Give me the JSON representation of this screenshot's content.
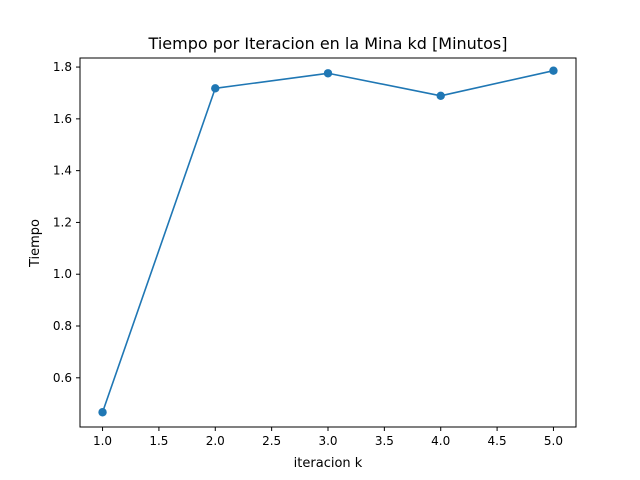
{
  "chart_data": {
    "type": "line",
    "title": "Tiempo por Iteracion en la Mina kd [Minutos]",
    "xlabel": "iteracion k",
    "ylabel": "Tiempo",
    "xlim": [
      0.8,
      5.2
    ],
    "ylim": [
      0.41,
      1.835
    ],
    "x_ticks": [
      1.0,
      1.5,
      2.0,
      2.5,
      3.0,
      3.5,
      4.0,
      4.5,
      5.0
    ],
    "x_tick_labels": [
      "1.0",
      "1.5",
      "2.0",
      "2.5",
      "3.0",
      "3.5",
      "4.0",
      "4.5",
      "5.0"
    ],
    "y_ticks": [
      0.6,
      0.8,
      1.0,
      1.2,
      1.4,
      1.6,
      1.8
    ],
    "y_tick_labels": [
      "0.6",
      "0.8",
      "1.0",
      "1.2",
      "1.4",
      "1.6",
      "1.8"
    ],
    "grid": false,
    "series": [
      {
        "name": "Tiempo",
        "color": "#1f77b4",
        "marker": "circle",
        "x": [
          1.0,
          2.0,
          3.0,
          4.0,
          5.0
        ],
        "values": [
          0.467,
          1.718,
          1.776,
          1.689,
          1.786
        ]
      }
    ]
  }
}
